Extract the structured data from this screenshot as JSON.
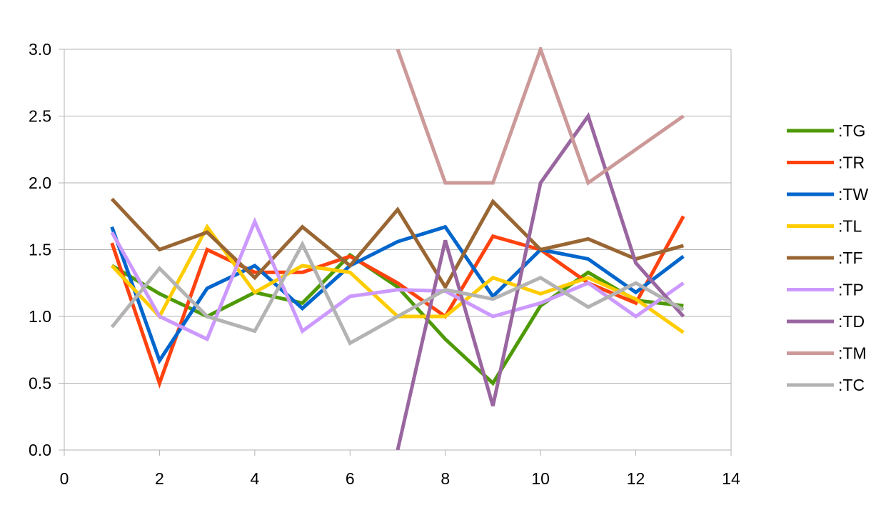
{
  "chart_data": {
    "type": "line",
    "title": "",
    "xlabel": "",
    "ylabel": "",
    "xlim": [
      0,
      14
    ],
    "ylim": [
      0,
      3
    ],
    "x_ticks": [
      0,
      2,
      4,
      6,
      8,
      10,
      12,
      14
    ],
    "y_ticks": [
      0.0,
      0.5,
      1.0,
      1.5,
      2.0,
      2.5,
      3.0
    ],
    "x_tick_labels": [
      "0",
      "2",
      "4",
      "6",
      "8",
      "10",
      "12",
      "14"
    ],
    "y_tick_labels": [
      "0.0",
      "0.5",
      "1.0",
      "1.5",
      "2.0",
      "2.5",
      "3.0"
    ],
    "grid": "horizontal",
    "legend_position": "right",
    "x": [
      1,
      2,
      3,
      4,
      5,
      6,
      7,
      8,
      9,
      10,
      11,
      12,
      13
    ],
    "series": [
      {
        "name": ":TG",
        "color": "#4e9a06",
        "values": [
          1.38,
          1.17,
          1.0,
          1.18,
          1.1,
          1.46,
          1.22,
          0.83,
          0.5,
          1.08,
          1.33,
          1.12,
          1.08
        ]
      },
      {
        "name": ":TR",
        "color": "#ff420e",
        "values": [
          1.55,
          0.5,
          1.5,
          1.33,
          1.33,
          1.45,
          1.25,
          1.0,
          1.6,
          1.5,
          1.25,
          1.1,
          1.75
        ]
      },
      {
        "name": ":TW",
        "color": "#0066cc",
        "values": [
          1.67,
          0.67,
          1.21,
          1.38,
          1.06,
          1.38,
          1.56,
          1.67,
          1.15,
          1.5,
          1.43,
          1.18,
          1.45
        ]
      },
      {
        "name": ":TL",
        "color": "#ffcc00",
        "values": [
          1.38,
          1.0,
          1.67,
          1.18,
          1.38,
          1.33,
          1.0,
          1.0,
          1.29,
          1.17,
          1.29,
          1.13,
          0.88
        ]
      },
      {
        "name": ":TF",
        "color": "#996633",
        "values": [
          1.88,
          1.5,
          1.63,
          1.29,
          1.67,
          1.38,
          1.8,
          1.22,
          1.86,
          1.5,
          1.58,
          1.43,
          1.53
        ]
      },
      {
        "name": ":TP",
        "color": "#cc99ff",
        "values": [
          1.63,
          1.0,
          0.83,
          1.71,
          0.89,
          1.15,
          1.2,
          1.19,
          1.0,
          1.1,
          1.25,
          1.0,
          1.25
        ]
      },
      {
        "name": ":TD",
        "color": "#9966a0",
        "values": [
          null,
          null,
          null,
          null,
          null,
          null,
          0.0,
          1.57,
          0.33,
          2.0,
          2.5,
          1.4,
          1.0
        ]
      },
      {
        "name": ":TM",
        "color": "#cc9999",
        "values": [
          null,
          null,
          null,
          null,
          null,
          null,
          3.0,
          2.0,
          2.0,
          3.0,
          2.0,
          2.25,
          2.5
        ]
      },
      {
        "name": ":TC",
        "color": "#b3b3b3",
        "values": [
          0.92,
          1.36,
          1.0,
          0.89,
          1.54,
          0.8,
          1.0,
          1.2,
          1.13,
          1.29,
          1.07,
          1.25,
          1.05
        ]
      }
    ]
  }
}
